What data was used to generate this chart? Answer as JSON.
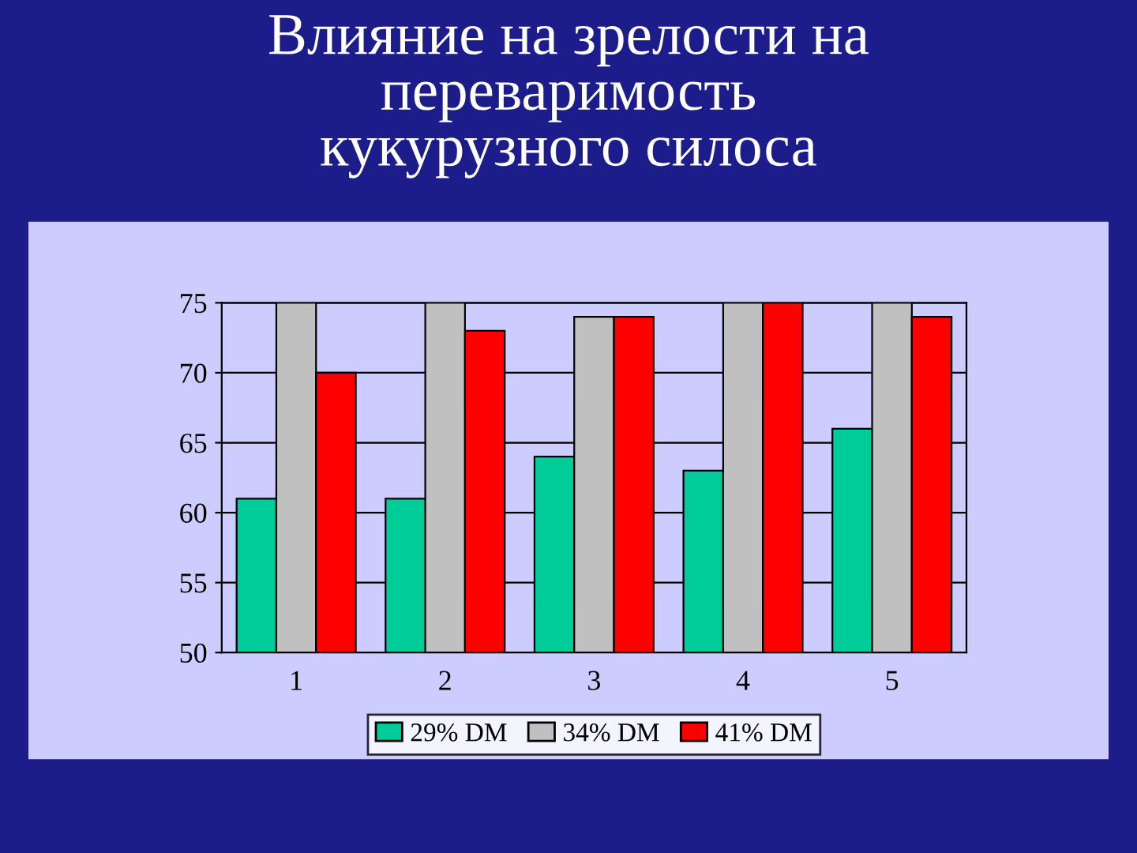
{
  "chart_data": {
    "type": "bar",
    "title": "Влияние на зрелости на\nпереваримость\nкукурузного силоса",
    "categories": [
      "1",
      "2",
      "3",
      "4",
      "5"
    ],
    "series": [
      {
        "name": "29% DM",
        "color": "#00cc99",
        "values": [
          61,
          61,
          64,
          63,
          66
        ]
      },
      {
        "name": "34% DM",
        "color": "#c0c0c0",
        "values": [
          75,
          75,
          74,
          75,
          75
        ]
      },
      {
        "name": "41% DM",
        "color": "#ff0000",
        "values": [
          70,
          73,
          74,
          75,
          74
        ]
      }
    ],
    "ylim": [
      50,
      75
    ],
    "yticks": [
      50,
      55,
      60,
      65,
      70,
      75
    ],
    "grid": "y",
    "legend": "bottom"
  }
}
